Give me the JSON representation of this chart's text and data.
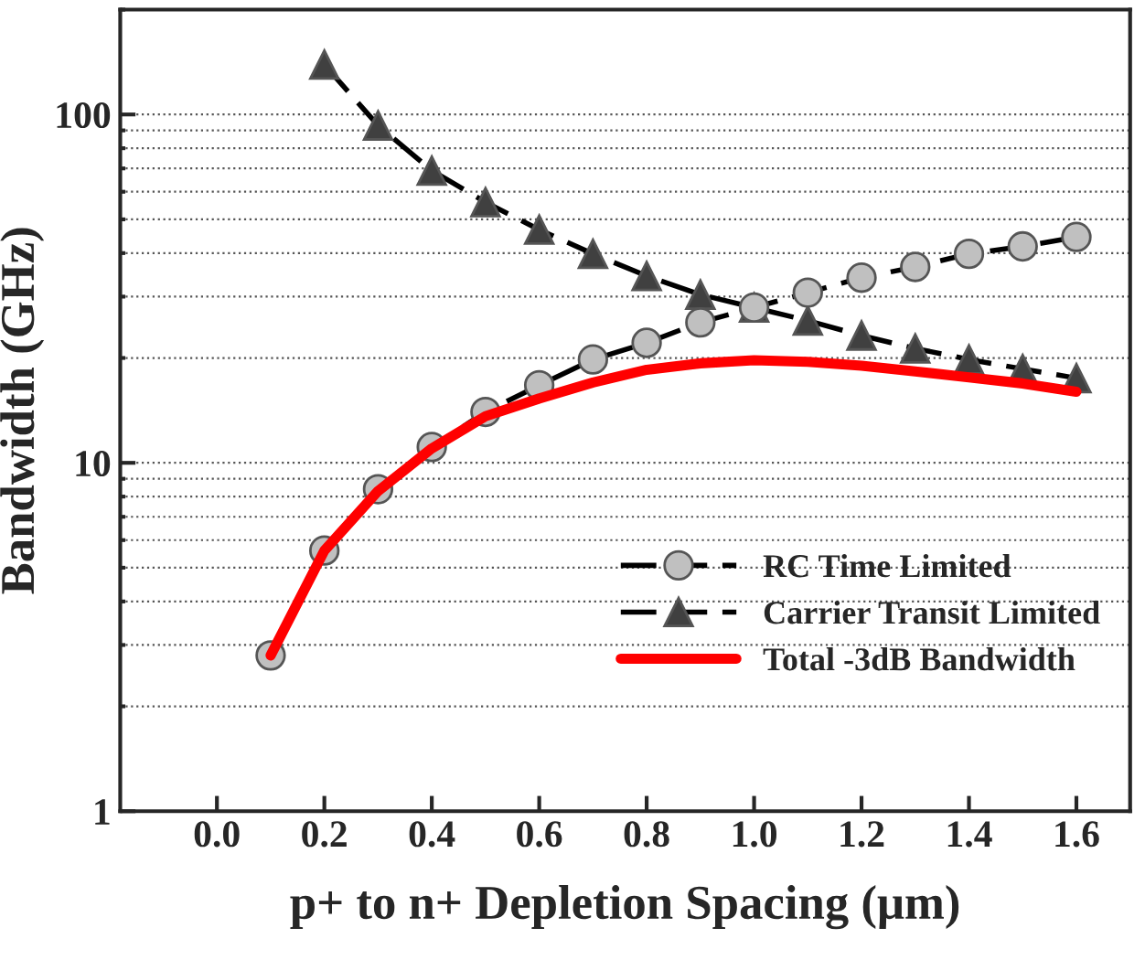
{
  "chart_data": {
    "type": "line",
    "xlabel": "p+ to n+ Depletion Spacing (μm)",
    "ylabel": "Bandwidth (GHz)",
    "log": "y",
    "xlim": [
      -0.18,
      1.7
    ],
    "ylim": [
      1,
      200
    ],
    "xticks": [
      {
        "value": 0.0,
        "label": "0.0"
      },
      0.2,
      0.4,
      0.6,
      0.8,
      {
        "value": 1.0,
        "label": "1.0"
      },
      1.2,
      1.4,
      1.6
    ],
    "yticks": [
      1,
      10,
      100
    ],
    "grid": "y",
    "legend": "bottom right",
    "series": [
      {
        "name": "RC Time Limited",
        "color": "#000000",
        "marker": "circle",
        "line_style": "dashed",
        "x": [
          0.1,
          0.2,
          0.3,
          0.4,
          0.5,
          0.6,
          0.7,
          0.8,
          0.9,
          1.0,
          1.1,
          1.2,
          1.3,
          1.4,
          1.5,
          1.6
        ],
        "values": [
          2.8,
          5.6,
          8.4,
          11.1,
          14.0,
          16.7,
          19.8,
          22.1,
          25.3,
          27.9,
          30.8,
          34,
          36.5,
          39.8,
          41.8,
          44.5
        ]
      },
      {
        "name": "Carrier Transit Limited",
        "color": "#000000",
        "marker": "triangle",
        "line_style": "dashed",
        "x": [
          0.2,
          0.3,
          0.4,
          0.5,
          0.6,
          0.7,
          0.8,
          0.9,
          1.0,
          1.1,
          1.2,
          1.3,
          1.4,
          1.5,
          1.6
        ],
        "values": [
          139,
          93,
          69,
          56,
          46.7,
          39.8,
          34.4,
          30.4,
          27.9,
          25.6,
          23.2,
          21.3,
          19.8,
          18.6,
          17.5
        ]
      },
      {
        "name": "Total -3dB Bandwidth",
        "color": "#ff0000",
        "marker": "none",
        "line_style": "solid",
        "x": [
          0.1,
          0.2,
          0.3,
          0.4,
          0.5,
          0.6,
          0.7,
          0.8,
          0.9,
          1.0,
          1.1,
          1.2,
          1.3,
          1.4,
          1.5,
          1.6
        ],
        "values": [
          2.8,
          5.6,
          8.3,
          11.0,
          13.6,
          15.3,
          17.0,
          18.5,
          19.3,
          19.7,
          19.5,
          19.0,
          18.3,
          17.6,
          16.9,
          16.0
        ]
      }
    ]
  }
}
